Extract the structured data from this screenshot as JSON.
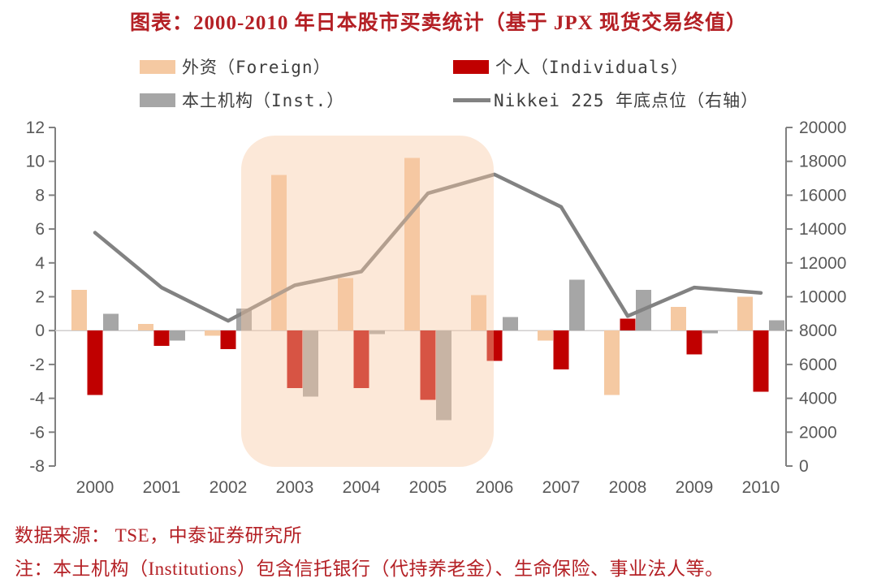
{
  "title": "图表：2000-2010 年日本股市买卖统计（基于 JPX 现货交易终值）",
  "legend": {
    "items": [
      {
        "label": "外资（Foreign）",
        "swatch": "bar",
        "color_key": "foreign"
      },
      {
        "label": "个人（Individuals）",
        "swatch": "bar",
        "color_key": "individuals"
      },
      {
        "label": "本土机构（Inst.）",
        "swatch": "bar",
        "color_key": "inst"
      },
      {
        "label": "Nikkei 225 年底点位（右轴）",
        "swatch": "line",
        "color_key": "line"
      }
    ]
  },
  "source": "数据来源： TSE，中泰证券研究所",
  "note": "注：本土机构（Institutions）包含信托银行（代持养老金）、生命保险、事业法人等。",
  "colors": {
    "foreign": "#f5c9a2",
    "individuals": "#c00000",
    "inst": "#a6a6a6",
    "line": "#828282",
    "highlight": "rgba(247,201,163,0.42)",
    "text_red": "#b42025",
    "axis_line": "#808080",
    "axis_text": "#595959",
    "zero_line": "#d0cece"
  },
  "chart_data": {
    "type": "bar",
    "subtype": "grouped bars with overlay line (dual axis)",
    "categories": [
      2000,
      2001,
      2002,
      2003,
      2004,
      2005,
      2006,
      2007,
      2008,
      2009,
      2010
    ],
    "series": [
      {
        "name": "外资（Foreign）",
        "type": "bar",
        "axis": "left",
        "values": [
          2.4,
          0.4,
          -0.3,
          9.2,
          3.1,
          10.2,
          2.1,
          -0.6,
          -3.8,
          1.4,
          2.0
        ]
      },
      {
        "name": "个人（Individuals）",
        "type": "bar",
        "axis": "left",
        "values": [
          -3.8,
          -0.9,
          -1.1,
          -3.4,
          -3.4,
          -4.1,
          -1.8,
          -2.3,
          0.7,
          -1.4,
          -3.6
        ]
      },
      {
        "name": "本土机构（Inst.）",
        "type": "bar",
        "axis": "left",
        "values": [
          1.0,
          -0.6,
          1.3,
          -3.9,
          -0.2,
          -5.3,
          0.8,
          3.0,
          2.4,
          -0.15,
          0.6
        ]
      },
      {
        "name": "Nikkei 225 年底点位（右轴）",
        "type": "line",
        "axis": "right",
        "values": [
          13786,
          10543,
          8579,
          10677,
          11489,
          16111,
          17226,
          15308,
          8860,
          10546,
          10229
        ]
      }
    ],
    "left_axis": {
      "min": -8,
      "max": 12,
      "step": 2
    },
    "right_axis": {
      "min": 0,
      "max": 20000,
      "step": 2000
    },
    "highlight_region": {
      "from_year": 2003,
      "to_year": 2005
    },
    "grid": "off",
    "legend_position": "top"
  }
}
